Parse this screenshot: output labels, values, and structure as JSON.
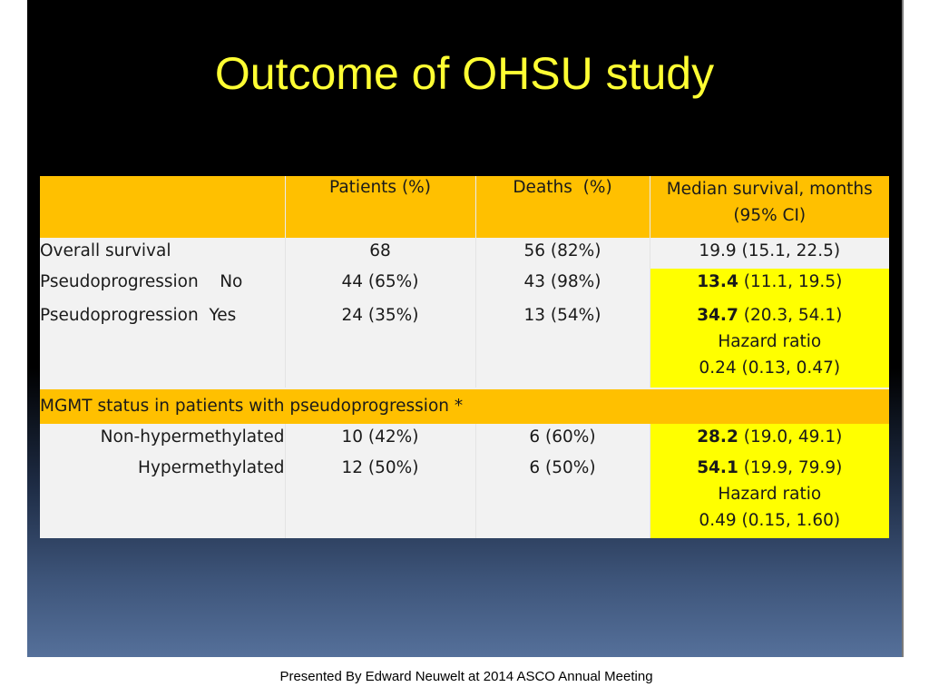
{
  "slide": {
    "title": "Outcome of OHSU study"
  },
  "table": {
    "headers": [
      "",
      "Patients (%)",
      "Deaths  (%)",
      "Median survival, months",
      "(95% CI)"
    ],
    "overall": {
      "label": "Overall survival",
      "patients": "68",
      "deaths": "56 (82%)",
      "median": "19.9 (15.1, 22.5)"
    },
    "pseudo_no": {
      "label": "Pseudoprogression    No",
      "patients": "44 (65%)",
      "deaths": "43 (98%)",
      "median_bold": "13.4",
      "median_rest": " (11.1, 19.5)"
    },
    "pseudo_yes": {
      "label": "Pseudoprogression  Yes",
      "patients": "24 (35%)",
      "deaths": "13 (54%)",
      "median_bold": "34.7",
      "median_rest": " (20.3, 54.1)",
      "hr_label": "Hazard ratio",
      "hr_value": "0.24 (0.13, 0.47)"
    },
    "section_label": "MGMT status in patients with pseudoprogression *",
    "non_hyper": {
      "label": "Non-hypermethylated",
      "patients": "10 (42%)",
      "deaths": "6 (60%)",
      "median_bold": "28.2",
      "median_rest": " (19.0, 49.1)"
    },
    "hyper": {
      "label": "Hypermethylated",
      "patients": "12 (50%)",
      "deaths": "6 (50%)",
      "median_bold": "54.1",
      "median_rest": " (19.9, 79.9)",
      "hr_label": "Hazard ratio",
      "hr_value": "0.49 (0.15, 1.60)"
    }
  },
  "footer": {
    "credit": "Presented By Edward Neuwelt at 2014 ASCO Annual Meeting"
  }
}
